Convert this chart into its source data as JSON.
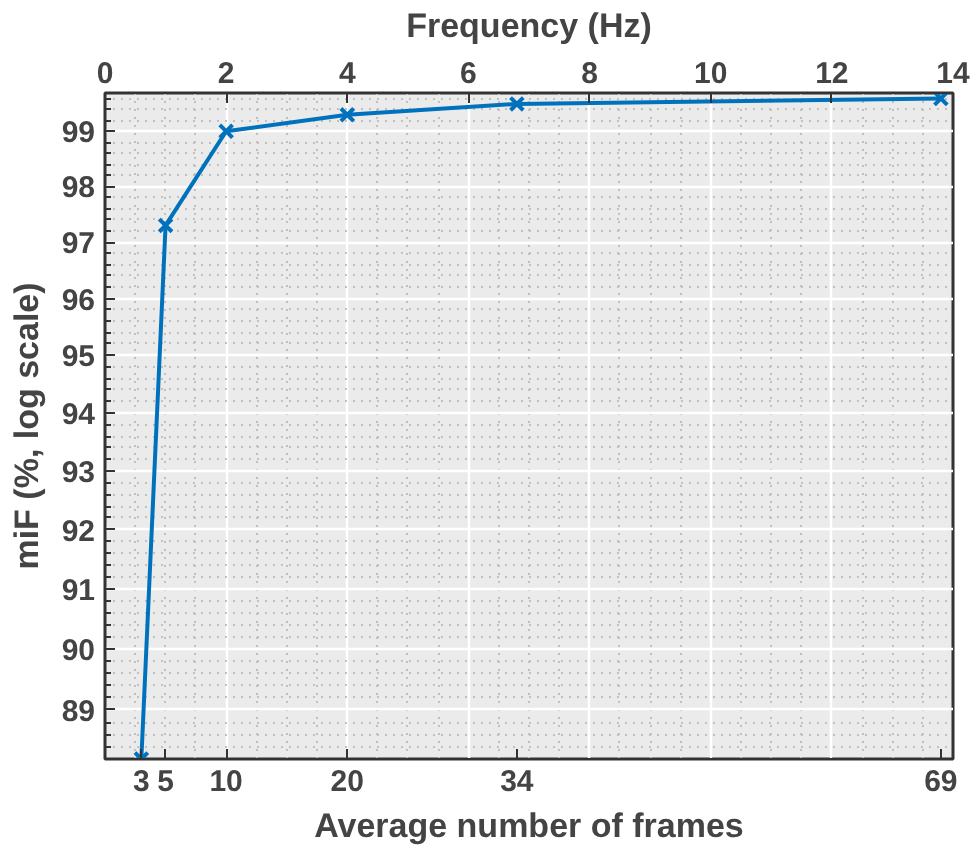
{
  "chart_data": {
    "type": "line",
    "xlabel": "Average number of frames",
    "x2label": "Frequency (Hz)",
    "ylabel": "miF (%, log scale)",
    "x": [
      3,
      5,
      10,
      20,
      34,
      69
    ],
    "series": [
      {
        "color": "#0072bd",
        "values": [
          88.2,
          97.3,
          99.0,
          99.3,
          99.5,
          99.6
        ]
      }
    ],
    "xlim": [
      0,
      70
    ],
    "xticks": [
      3,
      5,
      10,
      20,
      34,
      69
    ],
    "x2lim": [
      0,
      14
    ],
    "x2ticks": [
      0,
      2,
      4,
      6,
      8,
      10,
      12,
      14
    ],
    "ylim": [
      88.2,
      99.7
    ],
    "yticks": [
      89,
      90,
      91,
      92,
      93,
      94,
      95,
      96,
      97,
      98,
      99
    ],
    "log": "y",
    "grid": true,
    "marker": "cross",
    "line_style": "solid"
  }
}
